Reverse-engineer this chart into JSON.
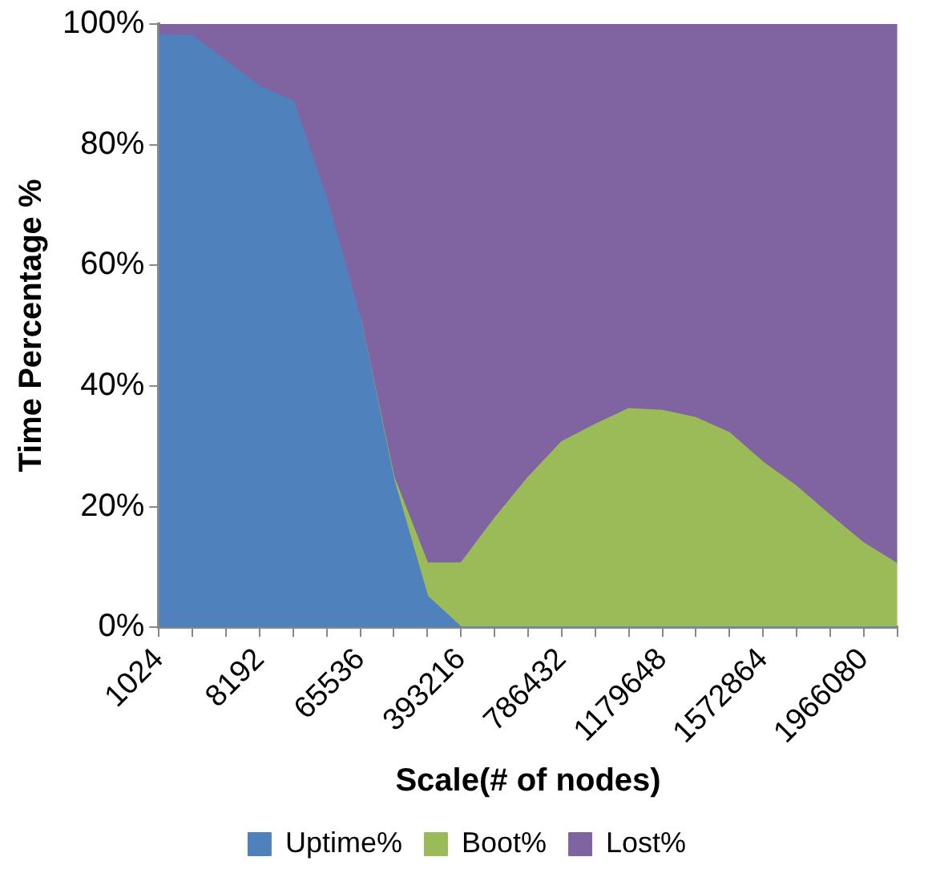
{
  "chart_data": {
    "type": "area",
    "stacked": true,
    "xlabel": "Scale(# of nodes)",
    "ylabel": "Time Percentage %",
    "categories": [
      "1024",
      null,
      null,
      "8192",
      null,
      null,
      "65536",
      null,
      null,
      "393216",
      null,
      null,
      "786432",
      null,
      null,
      "1179648",
      null,
      null,
      "1572864",
      null,
      null,
      "1966080",
      null
    ],
    "series": [
      {
        "name": "Uptime%",
        "color": "#4f81bd",
        "values": [
          98.2,
          98.0,
          93.8,
          89.6,
          87.2,
          70.9,
          51.1,
          24.3,
          5.1,
          0,
          0,
          0,
          0,
          0,
          0,
          0,
          0,
          0,
          0,
          0,
          0,
          0,
          0
        ]
      },
      {
        "name": "Boot%",
        "color": "#9bbb59",
        "values": [
          null,
          null,
          null,
          null,
          null,
          null,
          0,
          0.5,
          5.5,
          10.6,
          18.0,
          24.8,
          30.7,
          33.6,
          36.2,
          35.9,
          34.7,
          32.2,
          27.3,
          23.3,
          18.5,
          13.9,
          10.5
        ]
      },
      {
        "name": "Lost%",
        "color": "#8064a2",
        "values": [
          1.8,
          2.0,
          6.2,
          10.4,
          12.8,
          29.1,
          48.9,
          75.2,
          89.4,
          89.4,
          82.0,
          75.2,
          69.3,
          66.4,
          63.8,
          64.1,
          65.3,
          67.8,
          72.7,
          76.7,
          81.5,
          86.1,
          89.5
        ]
      }
    ],
    "ylim": [
      0,
      100
    ],
    "yticks": [
      {
        "value": 0,
        "label": "0%"
      },
      {
        "value": 20,
        "label": "20%"
      },
      {
        "value": 40,
        "label": "40%"
      },
      {
        "value": 60,
        "label": "60%"
      },
      {
        "value": 80,
        "label": "80%"
      },
      {
        "value": 100,
        "label": "100%"
      }
    ],
    "legend": "bottom",
    "grid": false
  }
}
